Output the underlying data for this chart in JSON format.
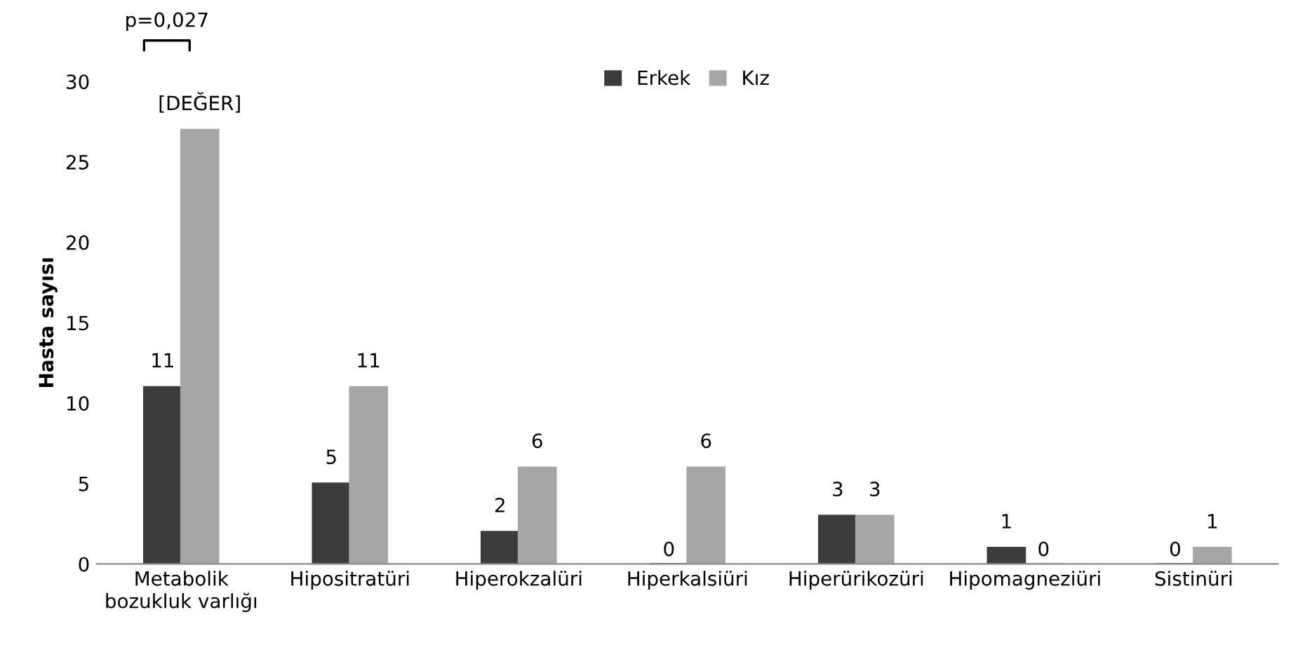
{
  "chart_data": {
    "type": "bar",
    "ylabel": "Hasta sayısı",
    "categories": [
      "Metabolik\nbozukluk varlığı",
      "Hipositratüri",
      "Hiperokzalüri",
      "Hiperkalsiüri",
      "Hiperürikozüri",
      "Hipomagneziüri",
      "Sistinüri"
    ],
    "series": [
      {
        "name": "Erkek",
        "color": "#3c3c3c",
        "values": [
          11,
          5,
          2,
          0,
          3,
          1,
          0
        ],
        "value_labels": [
          "11",
          "5",
          "2",
          "0",
          "3",
          "1",
          "0"
        ]
      },
      {
        "name": "Kız",
        "color": "#a6a6a6",
        "values": [
          27,
          11,
          6,
          6,
          3,
          0,
          1
        ],
        "value_labels": [
          "[DEĞER]",
          "11",
          "6",
          "6",
          "3",
          "0",
          "1"
        ]
      }
    ],
    "ylim": [
      0,
      30
    ],
    "yticks": [
      0,
      5,
      10,
      15,
      20,
      25,
      30
    ],
    "grid": false,
    "legend": "top",
    "annotations": [
      "p=0,027"
    ]
  }
}
